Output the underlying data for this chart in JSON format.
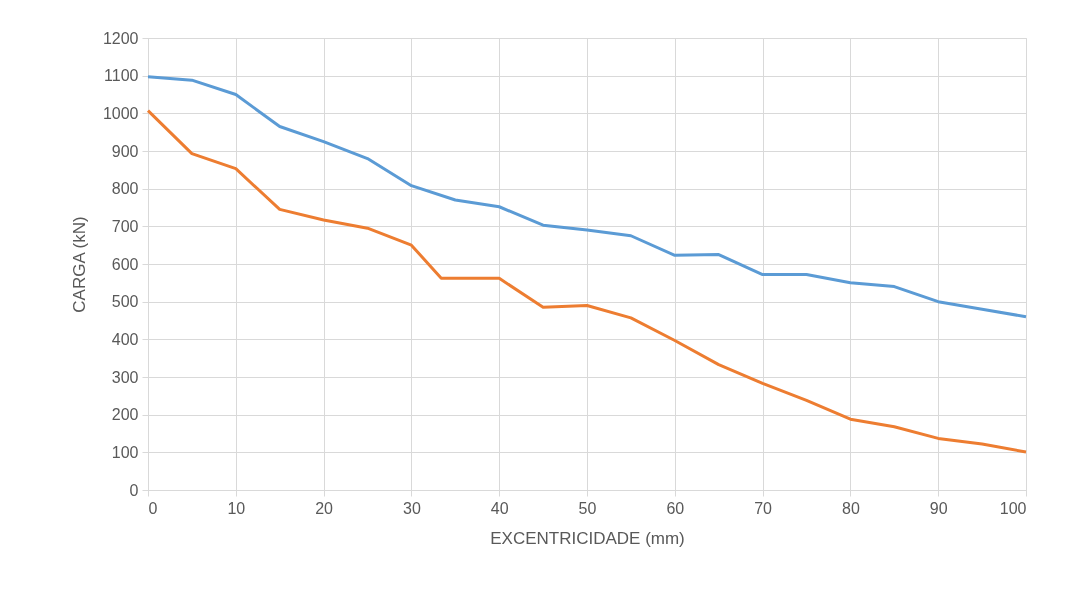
{
  "chart_data": {
    "type": "line",
    "xlabel": "EXCENTRICIDADE (mm)",
    "ylabel": "CARGA (kN)",
    "xlim": [
      0,
      100
    ],
    "xticks": [
      0,
      10,
      20,
      30,
      40,
      50,
      60,
      70,
      80,
      90,
      100
    ],
    "ylim": [
      0,
      1200
    ],
    "yticks": [
      0,
      100,
      200,
      300,
      400,
      500,
      600,
      700,
      800,
      900,
      1000,
      1100,
      1200
    ],
    "grid": true,
    "marker": "none",
    "line_style": "solid",
    "series": [
      {
        "color": "#5b9bd5",
        "x": [
          0,
          5,
          10,
          15,
          20,
          25,
          30,
          35,
          40,
          45,
          50,
          55,
          60,
          65,
          70,
          75,
          80,
          85,
          90,
          95,
          100
        ],
        "values": [
          1097,
          1088,
          1050,
          965,
          925,
          880,
          808,
          770,
          752,
          703,
          690,
          675,
          623,
          625,
          572,
          572,
          550,
          540,
          500,
          480,
          460
        ]
      },
      {
        "color": "#ed7d31",
        "x": [
          0,
          5,
          10,
          15,
          20,
          25,
          30,
          33.4,
          40,
          45,
          50,
          55,
          60,
          65,
          70,
          75,
          80,
          85,
          90,
          95,
          100
        ],
        "values": [
          1007,
          893,
          853,
          745,
          717,
          695,
          650,
          562,
          562,
          485,
          490,
          457,
          397,
          333,
          283,
          238,
          188,
          168,
          137,
          122,
          101
        ]
      }
    ]
  }
}
